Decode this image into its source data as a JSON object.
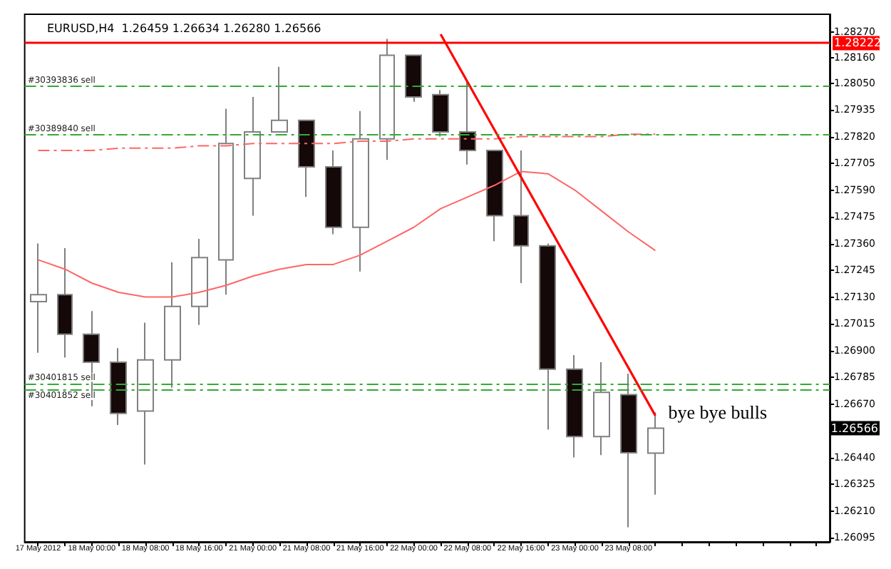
{
  "chart_data": {
    "type": "candlestick",
    "title": "EURUSD,H4  1.26459 1.26634 1.26280 1.26566",
    "categories": [
      "17 May 2012",
      null,
      "18 May 00:00",
      null,
      "18 May 08:00",
      null,
      "18 May 16:00",
      null,
      "21 May 00:00",
      null,
      "21 May 08:00",
      null,
      "21 May 16:00",
      null,
      "22 May 00:00",
      null,
      "22 May 08:00",
      null,
      "22 May 16:00",
      null,
      "23 May 00:00",
      null,
      "23 May 08:00",
      null
    ],
    "ohlc": [
      [
        1.2711,
        1.2736,
        1.2689,
        1.2714
      ],
      [
        1.2714,
        1.2734,
        1.2687,
        1.2697
      ],
      [
        1.2697,
        1.2707,
        1.2666,
        1.2685
      ],
      [
        1.2685,
        1.2691,
        1.2658,
        1.2663
      ],
      [
        1.2664,
        1.2702,
        1.2641,
        1.2686
      ],
      [
        1.2686,
        1.2728,
        1.2674,
        1.2709
      ],
      [
        1.2709,
        1.2738,
        1.2701,
        1.273
      ],
      [
        1.2729,
        1.2794,
        1.2714,
        1.2779
      ],
      [
        1.2764,
        1.2799,
        1.2748,
        1.2784
      ],
      [
        1.2784,
        1.2812,
        1.2784,
        1.2789
      ],
      [
        1.2789,
        1.2789,
        1.2756,
        1.2769
      ],
      [
        1.2769,
        1.2776,
        1.274,
        1.2743
      ],
      [
        1.2743,
        1.2793,
        1.2724,
        1.2781
      ],
      [
        1.2781,
        1.2824,
        1.2772,
        1.2817
      ],
      [
        1.2817,
        1.2817,
        1.2797,
        1.2799
      ],
      [
        1.28,
        1.2802,
        1.2782,
        1.2784
      ],
      [
        1.2784,
        1.2806,
        1.277,
        1.2776
      ],
      [
        1.2776,
        1.2776,
        1.2737,
        1.2748
      ],
      [
        1.2748,
        1.2776,
        1.2719,
        1.2735
      ],
      [
        1.2735,
        1.2736,
        1.2656,
        1.2682
      ],
      [
        1.2682,
        1.2688,
        1.2644,
        1.2653
      ],
      [
        1.2653,
        1.2685,
        1.2645,
        1.2672
      ],
      [
        1.2671,
        1.268,
        1.2614,
        1.2646
      ],
      [
        1.26459,
        1.26634,
        1.2628,
        1.26566
      ]
    ],
    "series": [
      {
        "type": "line",
        "color": "#ff6666",
        "values": [
          1.2729,
          1.2725,
          1.2719,
          1.2715,
          1.2713,
          1.2713,
          1.2715,
          1.2718,
          1.2722,
          1.2725,
          1.2727,
          1.2727,
          1.2731,
          1.2737,
          1.2743,
          1.2751,
          1.2756,
          1.2761,
          1.2767,
          1.2766,
          1.2759,
          1.275,
          1.2741,
          1.2733
        ]
      },
      {
        "type": "line",
        "color": "#ff6666",
        "line_style": "dashed",
        "values": [
          1.2776,
          1.2776,
          1.2776,
          1.2777,
          1.2777,
          1.2777,
          1.2778,
          1.2778,
          1.2779,
          1.2779,
          1.2779,
          1.2779,
          1.278,
          1.278,
          1.2781,
          1.2781,
          1.2781,
          1.2781,
          1.2782,
          1.2782,
          1.2782,
          1.2782,
          1.2783,
          1.2783
        ]
      },
      {
        "type": "line",
        "color": "#ff0000",
        "values": [
          null,
          null,
          null,
          null,
          null,
          null,
          null,
          null,
          null,
          null,
          null,
          null,
          null,
          null,
          null,
          1.2826,
          null,
          null,
          null,
          null,
          null,
          null,
          null,
          1.2662
        ]
      }
    ],
    "ylim": [
      1.26077,
      1.28346
    ],
    "yticks": [
      {
        "value": 1.2827,
        "label": "1.28270"
      },
      {
        "value": 1.2816,
        "label": "1.28160"
      },
      {
        "value": 1.2805,
        "label": "1.28050"
      },
      1.27935,
      {
        "value": 1.2782,
        "label": "1.27820"
      },
      1.27705,
      {
        "value": 1.2759,
        "label": "1.27590"
      },
      1.27475,
      {
        "value": 1.2736,
        "label": "1.27360"
      },
      1.27245,
      {
        "value": 1.2713,
        "label": "1.27130"
      },
      1.27015,
      {
        "value": 1.269,
        "label": "1.26900"
      },
      1.26785,
      {
        "value": 1.2667,
        "label": "1.26670"
      },
      {
        "value": 1.2644,
        "label": "1.26440"
      },
      1.26325,
      {
        "value": 1.2621,
        "label": "1.26210"
      },
      1.26095
    ],
    "ref_lines": [
      {
        "axis": "y",
        "value": 1.28222,
        "label": "1.28222",
        "color": "#ff0000",
        "line_style": "solid"
      },
      {
        "axis": "y",
        "value": 1.28035,
        "label": "#30393836 sell",
        "color": "#33aa33",
        "line_style": "dashed"
      },
      {
        "axis": "y",
        "value": 1.27829,
        "label": "#30389840 sell",
        "color": "#33aa33",
        "line_style": "dashed"
      },
      {
        "axis": "y",
        "value": 1.26759,
        "label": "#30401815 sell",
        "color": "#33aa33",
        "line_style": "dashed"
      },
      {
        "axis": "y",
        "value": 1.2673,
        "label": "#30401852 sell",
        "color": "#33aa33",
        "line_style": "dashed"
      }
    ],
    "annotations": [
      "1.26566",
      "bye bye bulls"
    ],
    "grid": false
  }
}
